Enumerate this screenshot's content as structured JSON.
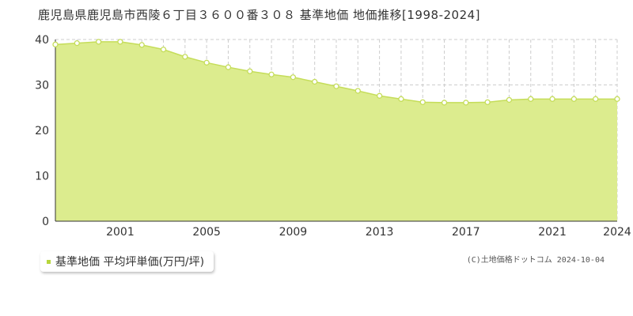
{
  "title": "鹿児島県鹿児島市西陵６丁目３６００番３０８ 基準地価 地価推移[1998-2024]",
  "legend": {
    "label": "基準地価 平均坪単価(万円/坪)"
  },
  "copyright": "(C)土地価格ドットコム 2024-10-04",
  "colors": {
    "fill": "#dcec8e",
    "line": "#c5dd5a",
    "point": "#c5dd5a",
    "grid": "#cccccc",
    "axis": "#333333",
    "swatch": "#b7d63c"
  },
  "chart_data": {
    "type": "area",
    "x": [
      1998,
      1999,
      2000,
      2001,
      2002,
      2003,
      2004,
      2005,
      2006,
      2007,
      2008,
      2009,
      2010,
      2011,
      2012,
      2013,
      2014,
      2015,
      2016,
      2017,
      2018,
      2019,
      2020,
      2021,
      2022,
      2023,
      2024
    ],
    "series": [
      {
        "name": "基準地価 平均坪単価(万円/坪)",
        "values": [
          38.9,
          39.2,
          39.5,
          39.5,
          38.8,
          37.8,
          36.2,
          34.9,
          33.9,
          33.0,
          32.3,
          31.7,
          30.7,
          29.7,
          28.7,
          27.6,
          26.9,
          26.2,
          26.1,
          26.1,
          26.2,
          26.7,
          26.9,
          26.9,
          26.9,
          26.9,
          26.9
        ]
      }
    ],
    "xticks": [
      "2001",
      "2005",
      "2009",
      "2013",
      "2017",
      "2021",
      "2024"
    ],
    "yticks": [
      "0",
      "10",
      "20",
      "30",
      "40"
    ],
    "xlim": [
      1998,
      2024
    ],
    "ylim": [
      0,
      40
    ],
    "grid": true
  }
}
